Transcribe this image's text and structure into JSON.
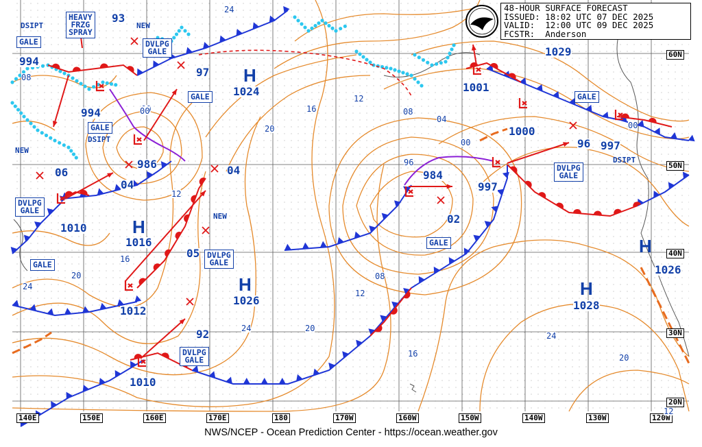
{
  "header": {
    "line1": "48-HOUR SURFACE FORECAST",
    "line2": "ISSUED: 18:02 UTC 07 DEC 2025",
    "line3": "VALID:  12:00 UTC 09 DEC 2025",
    "line4": "FCSTR:  Anderson"
  },
  "footer": "NWS/NCEP - Ocean Prediction Center - https://ocean.weather.gov",
  "colors": {
    "isobar": "#e58a2c",
    "front_cold": "#1f36d6",
    "front_warm": "#e01818",
    "occluded": "#8b1fd6",
    "label": "#1240a8",
    "ice": "#2cc7ef",
    "grid": "#5a5a5a"
  },
  "longitudes": [
    "140E",
    "150E",
    "160E",
    "170E",
    "180",
    "170W",
    "160W",
    "150W",
    "140W",
    "130W",
    "120W"
  ],
  "latitudes": [
    "60N",
    "50N",
    "40N",
    "30N",
    "20N"
  ],
  "highs": [
    {
      "symbol": "H",
      "pressure": "1024"
    },
    {
      "symbol": "H",
      "pressure": "1016"
    },
    {
      "symbol": "H",
      "pressure": "1026"
    },
    {
      "symbol": "H",
      "pressure": "1028"
    },
    {
      "symbol": "H",
      "pressure": "1026"
    }
  ],
  "lows_pressures": [
    "994",
    "986",
    "984",
    "997",
    "1001",
    "1000",
    "997",
    "1012",
    "1010",
    "1010",
    "1029"
  ],
  "forecast_pressures": [
    "93",
    "97",
    "04",
    "04",
    "06",
    "05",
    "92",
    "02",
    "96",
    "96",
    "00",
    "00",
    "00",
    "994"
  ],
  "boxes": {
    "heavy_frzg_spray": "HEAVY\nFRZG\nSPRAY",
    "gale": "GALE",
    "dvlpg_gale": "DVLPG\nGALE"
  },
  "words": {
    "dsipt": "DSIPT",
    "new": "NEW"
  },
  "isobar_labels": [
    "24",
    "16",
    "12",
    "20",
    "08",
    "00",
    "24",
    "20",
    "16",
    "12",
    "24",
    "08",
    "12",
    "20",
    "24",
    "16",
    "20",
    "12",
    "04",
    "08",
    "00"
  ]
}
